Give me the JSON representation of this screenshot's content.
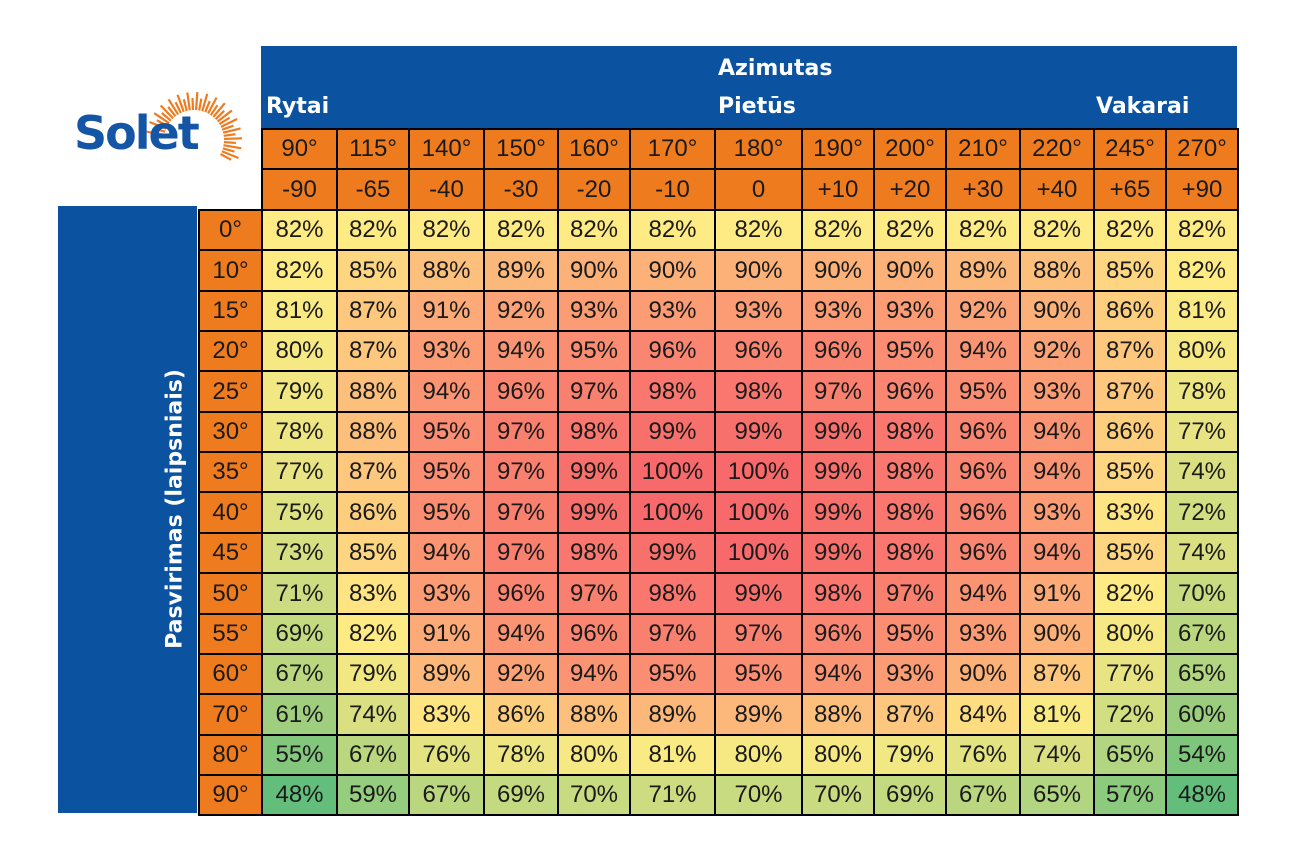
{
  "logo": {
    "text": "Solet"
  },
  "header": {
    "title": "Azimutas",
    "east": "Rytai",
    "south": "Pietūs",
    "west": "Vakarai",
    "row_axis_label": "Pasvirimas (laipsniais)"
  },
  "colors": {
    "header_band": "#0b53a0",
    "header_cells": "#ef7b1f",
    "scale_low": "#63be7b",
    "scale_mid": "#ffeb84",
    "scale_high": "#f8696b"
  },
  "chart_data": {
    "type": "heatmap",
    "title": "Azimutas",
    "xlabel": "Azimutas",
    "ylabel": "Pasvirimas (laipsniais)",
    "azimuth_degrees": [
      "90°",
      "115°",
      "140°",
      "150°",
      "160°",
      "170°",
      "180°",
      "190°",
      "200°",
      "210°",
      "220°",
      "245°",
      "270°"
    ],
    "azimuth_offsets": [
      "-90",
      "-65",
      "-40",
      "-30",
      "-20",
      "-10",
      "0",
      "+10",
      "+20",
      "+30",
      "+40",
      "+65",
      "+90"
    ],
    "tilts": [
      "0°",
      "10°",
      "15°",
      "20°",
      "25°",
      "30°",
      "35°",
      "40°",
      "45°",
      "50°",
      "55°",
      "60°",
      "70°",
      "80°",
      "90°"
    ],
    "values": [
      [
        82,
        82,
        82,
        82,
        82,
        82,
        82,
        82,
        82,
        82,
        82,
        82,
        82
      ],
      [
        82,
        85,
        88,
        89,
        90,
        90,
        90,
        90,
        90,
        89,
        88,
        85,
        82
      ],
      [
        81,
        87,
        91,
        92,
        93,
        93,
        93,
        93,
        93,
        92,
        90,
        86,
        81
      ],
      [
        80,
        87,
        93,
        94,
        95,
        96,
        96,
        96,
        95,
        94,
        92,
        87,
        80
      ],
      [
        79,
        88,
        94,
        96,
        97,
        98,
        98,
        97,
        96,
        95,
        93,
        87,
        78
      ],
      [
        78,
        88,
        95,
        97,
        98,
        99,
        99,
        99,
        98,
        96,
        94,
        86,
        77
      ],
      [
        77,
        87,
        95,
        97,
        99,
        100,
        100,
        99,
        98,
        96,
        94,
        85,
        74
      ],
      [
        75,
        86,
        95,
        97,
        99,
        100,
        100,
        99,
        98,
        96,
        93,
        83,
        72
      ],
      [
        73,
        85,
        94,
        97,
        98,
        99,
        100,
        99,
        98,
        96,
        94,
        85,
        74
      ],
      [
        71,
        83,
        93,
        96,
        97,
        98,
        99,
        98,
        97,
        94,
        91,
        82,
        70
      ],
      [
        69,
        82,
        91,
        94,
        96,
        97,
        97,
        96,
        95,
        93,
        90,
        80,
        67
      ],
      [
        67,
        79,
        89,
        92,
        94,
        95,
        95,
        94,
        93,
        90,
        87,
        77,
        65
      ],
      [
        61,
        74,
        83,
        86,
        88,
        89,
        89,
        88,
        87,
        84,
        81,
        72,
        60
      ],
      [
        55,
        67,
        76,
        78,
        80,
        81,
        80,
        80,
        79,
        76,
        74,
        65,
        54
      ],
      [
        48,
        59,
        67,
        69,
        70,
        71,
        70,
        70,
        69,
        67,
        65,
        57,
        48
      ]
    ],
    "unit": "%",
    "value_range": [
      48,
      100
    ]
  }
}
